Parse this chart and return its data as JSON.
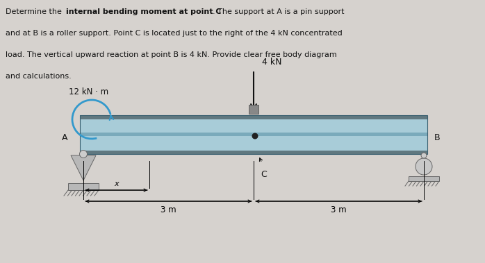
{
  "bg_color": "#d6d2ce",
  "text_color": "#111111",
  "beam_fill": "#a8ccd8",
  "beam_top_stripe": "#607880",
  "beam_mid_stripe": "#8ab0bc",
  "beam_bot_stripe": "#607880",
  "beam_outline": "#3a6070",
  "support_fill": "#b8b8b8",
  "support_edge": "#666666",
  "roller_fill": "#c8c8c8",
  "moment_arrow_color": "#3399cc",
  "force_color": "#111111",
  "dim_color": "#111111",
  "moment_label": "12 kN · m",
  "force_label": "4 kN",
  "label_A": "A",
  "label_B": "B",
  "label_C": "C",
  "label_x": "x",
  "label_3m_left": "3 m",
  "label_3m_right": "3 m",
  "line1_plain1": "Determine the ",
  "line1_bold": "internal bending moment at point C",
  "line1_plain2": ". The support at A is a pin support",
  "line2": "and at B is a roller support. Point C is located just to the right of the 4 kN concentrated",
  "line3": "load. The vertical upward reaction at point B is 4 kN. Provide clear free body diagram",
  "line4": "and calculations."
}
